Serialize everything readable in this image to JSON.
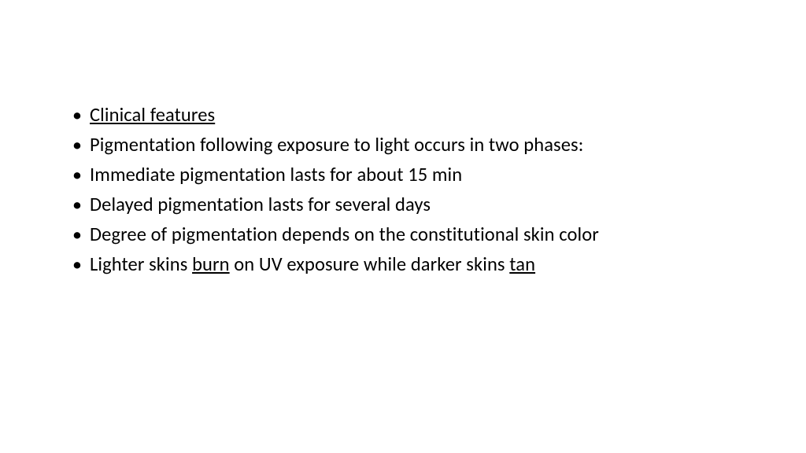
{
  "slide": {
    "background_color": "#ffffff",
    "text_color": "#000000",
    "font_family": "Calibri",
    "font_size_pt": 18,
    "line_height": 1.55,
    "bullets": [
      {
        "segments": [
          {
            "text": "Clinical features",
            "underline": true
          }
        ]
      },
      {
        "segments": [
          {
            "text": "Pigmentation following exposure to light occurs in two phases:",
            "underline": false
          }
        ]
      },
      {
        "segments": [
          {
            "text": "Immediate pigmentation lasts for about 15 min",
            "underline": false
          }
        ]
      },
      {
        "segments": [
          {
            "text": "Delayed pigmentation lasts for several days",
            "underline": false
          }
        ]
      },
      {
        "segments": [
          {
            "text": "Degree of pigmentation depends on the constitutional skin color",
            "underline": false
          }
        ]
      },
      {
        "segments": [
          {
            "text": "Lighter skins ",
            "underline": false
          },
          {
            "text": "burn",
            "underline": true
          },
          {
            "text": " on UV exposure while darker skins ",
            "underline": false
          },
          {
            "text": "tan",
            "underline": true
          }
        ]
      }
    ]
  }
}
